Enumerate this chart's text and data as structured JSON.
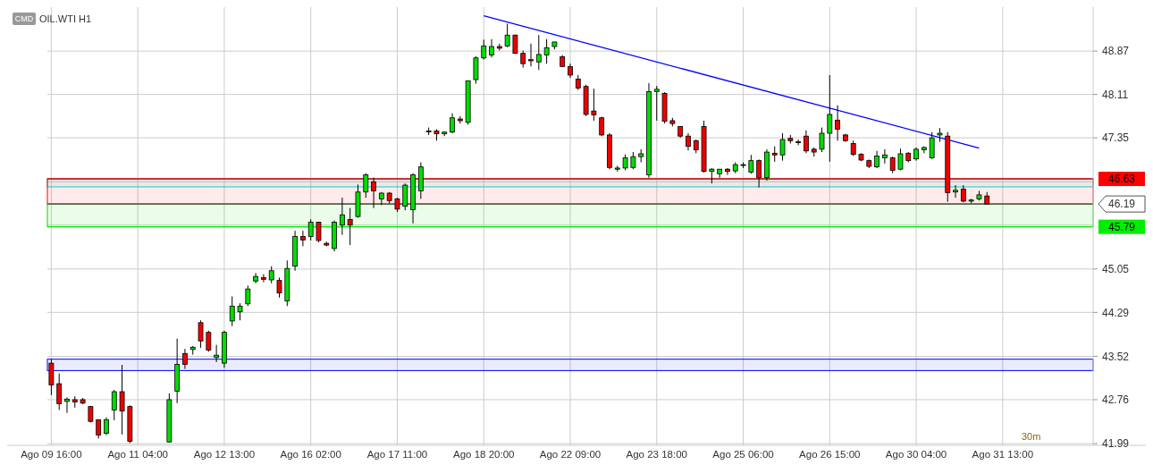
{
  "chart_data": {
    "type": "candlestick",
    "title": "OIL.WTI H1",
    "subtitle": "CMD",
    "annotations": [
      "30m"
    ],
    "grid": true,
    "categories": [
      "Ago 09 16:00",
      null,
      null,
      null,
      null,
      null,
      null,
      null,
      null,
      null,
      null,
      "Ago 11 04:00",
      null,
      null,
      null,
      null,
      null,
      null,
      null,
      null,
      null,
      null,
      "Ago 12 13:00",
      null,
      null,
      null,
      null,
      null,
      null,
      null,
      null,
      null,
      null,
      "Ago 16 02:00",
      null,
      null,
      null,
      null,
      null,
      null,
      null,
      null,
      null,
      null,
      "Ago 17 11:00",
      null,
      null,
      null,
      null,
      null,
      null,
      null,
      null,
      null,
      null,
      "Ago 18 20:00",
      null,
      null,
      null,
      null,
      null,
      null,
      null,
      null,
      null,
      null,
      "Ago 22 09:00",
      null,
      null,
      null,
      null,
      null,
      null,
      null,
      null,
      null,
      null,
      "Ago 23 18:00",
      null,
      null,
      null,
      null,
      null,
      null,
      null,
      null,
      null,
      null,
      "Ago 25 06:00",
      null,
      null,
      null,
      null,
      null,
      null,
      null,
      null,
      null,
      null,
      "Ago 26 15:00",
      null,
      null,
      null,
      null,
      null,
      null,
      null,
      null,
      null,
      null,
      "Ago 30 04:00",
      null,
      null,
      null,
      null,
      null,
      null,
      null,
      null,
      null,
      null,
      "Ago 31 13:00",
      null,
      null,
      null,
      null,
      null,
      null,
      null,
      null,
      null,
      null,
      null
    ],
    "ylim": [
      41.96,
      49.64
    ],
    "yticks": [
      41.99,
      42.76,
      43.52,
      44.29,
      45.05,
      {
        "value": 45.82,
        "label": null
      },
      {
        "value": 46.58,
        "label": null
      },
      47.35,
      48.11,
      48.87
    ],
    "ohlc": [
      [
        43.4,
        43.47,
        42.84,
        43.02
      ],
      [
        43.04,
        43.22,
        42.58,
        42.69
      ],
      [
        42.73,
        42.8,
        42.53,
        42.77
      ],
      [
        42.76,
        42.82,
        42.62,
        42.72
      ],
      [
        42.76,
        42.79,
        42.68,
        42.7
      ],
      [
        42.64,
        42.65,
        42.36,
        42.38
      ],
      [
        42.41,
        42.41,
        42.08,
        42.14
      ],
      [
        42.17,
        42.45,
        42.14,
        42.41
      ],
      [
        42.58,
        42.93,
        42.4,
        42.9
      ],
      [
        42.9,
        43.37,
        42.15,
        42.56
      ],
      [
        42.64,
        42.66,
        42.0,
        42.03
      ],
      null,
      null,
      null,
      null,
      [
        42.02,
        42.87,
        42.01,
        42.76
      ],
      [
        42.91,
        43.83,
        42.7,
        43.38
      ],
      [
        43.57,
        43.65,
        43.3,
        43.38
      ],
      [
        43.64,
        43.7,
        43.55,
        43.68
      ],
      [
        44.11,
        44.15,
        43.67,
        43.79
      ],
      [
        43.94,
        43.97,
        43.6,
        43.63
      ],
      [
        43.5,
        43.72,
        43.42,
        43.54
      ],
      [
        43.4,
        43.97,
        43.32,
        43.94
      ],
      [
        44.14,
        44.57,
        44.05,
        44.4
      ],
      [
        44.3,
        44.45,
        44.15,
        44.4
      ],
      [
        44.44,
        44.76,
        44.4,
        44.7
      ],
      [
        44.84,
        44.98,
        44.8,
        44.92
      ],
      [
        44.9,
        44.96,
        44.82,
        44.87
      ],
      [
        44.86,
        45.1,
        44.8,
        45.02
      ],
      [
        44.85,
        44.9,
        44.55,
        44.63
      ],
      [
        44.49,
        45.2,
        44.4,
        45.06
      ],
      [
        45.1,
        45.72,
        45.02,
        45.62
      ],
      [
        45.62,
        45.72,
        45.45,
        45.56
      ],
      [
        45.62,
        45.92,
        45.55,
        45.87
      ],
      [
        45.87,
        45.88,
        45.52,
        45.55
      ],
      [
        45.5,
        45.53,
        45.45,
        45.47
      ],
      [
        45.41,
        45.9,
        45.36,
        45.87
      ],
      [
        45.82,
        46.3,
        45.65,
        46.0
      ],
      [
        45.92,
        46.12,
        45.47,
        45.82
      ],
      [
        45.97,
        46.53,
        45.95,
        46.4
      ],
      [
        46.4,
        46.73,
        46.3,
        46.7
      ],
      [
        46.58,
        46.65,
        46.12,
        46.42
      ],
      [
        46.28,
        46.4,
        46.17,
        46.38
      ],
      [
        46.38,
        46.4,
        46.2,
        46.25
      ],
      [
        46.28,
        46.3,
        46.05,
        46.1
      ],
      [
        46.15,
        46.55,
        46.08,
        46.52
      ],
      [
        46.09,
        46.73,
        45.85,
        46.7
      ],
      [
        46.42,
        46.92,
        46.28,
        46.84
      ],
      [
        47.47,
        47.53,
        47.4,
        47.47
      ],
      [
        47.47,
        47.5,
        47.3,
        47.42
      ],
      [
        47.42,
        47.46,
        47.38,
        47.45
      ],
      [
        47.45,
        47.78,
        47.43,
        47.7
      ],
      [
        47.68,
        47.73,
        47.6,
        47.65
      ],
      [
        47.62,
        48.35,
        47.58,
        48.35
      ],
      [
        48.37,
        48.78,
        48.3,
        48.75
      ],
      [
        48.75,
        49.07,
        48.72,
        48.96
      ],
      [
        48.8,
        49.08,
        48.76,
        48.95
      ],
      [
        48.95,
        49.0,
        48.88,
        48.92
      ],
      [
        48.96,
        49.35,
        48.94,
        49.15
      ],
      [
        49.15,
        49.16,
        48.82,
        48.83
      ],
      [
        48.83,
        48.88,
        48.58,
        48.65
      ],
      [
        48.72,
        49.0,
        48.6,
        48.7
      ],
      [
        48.68,
        49.15,
        48.54,
        48.81
      ],
      [
        48.8,
        49.08,
        48.65,
        48.93
      ],
      [
        48.95,
        49.03,
        48.9,
        49.03
      ],
      [
        48.77,
        48.8,
        48.6,
        48.6
      ],
      [
        48.6,
        48.65,
        48.4,
        48.45
      ],
      [
        48.38,
        48.45,
        48.19,
        48.22
      ],
      [
        48.25,
        48.28,
        47.73,
        47.76
      ],
      [
        47.82,
        48.21,
        47.65,
        47.75
      ],
      [
        47.7,
        47.72,
        47.38,
        47.4
      ],
      [
        47.4,
        47.43,
        46.8,
        46.83
      ],
      [
        46.8,
        46.86,
        46.76,
        46.82
      ],
      [
        46.82,
        47.06,
        46.78,
        47.0
      ],
      [
        46.83,
        47.1,
        46.8,
        47.02
      ],
      [
        47.02,
        47.15,
        46.92,
        47.07
      ],
      [
        46.7,
        48.31,
        46.65,
        48.16
      ],
      [
        48.16,
        48.26,
        47.65,
        48.2
      ],
      [
        48.13,
        48.15,
        47.6,
        47.64
      ],
      [
        47.65,
        47.7,
        47.55,
        47.6
      ],
      [
        47.55,
        47.55,
        47.35,
        47.38
      ],
      [
        47.38,
        47.43,
        47.13,
        47.2
      ],
      [
        47.3,
        47.32,
        47.08,
        47.14
      ],
      [
        47.55,
        47.65,
        46.74,
        46.76
      ],
      [
        46.76,
        46.82,
        46.55,
        46.8
      ],
      [
        46.72,
        46.8,
        46.65,
        46.8
      ],
      [
        46.8,
        46.82,
        46.7,
        46.76
      ],
      [
        46.77,
        46.92,
        46.73,
        46.88
      ],
      [
        46.88,
        46.92,
        46.82,
        46.88
      ],
      [
        46.75,
        47.05,
        46.72,
        46.95
      ],
      [
        46.95,
        46.97,
        46.48,
        46.65
      ],
      [
        46.65,
        47.15,
        46.6,
        47.1
      ],
      [
        47.08,
        47.2,
        46.93,
        47.05
      ],
      [
        47.05,
        47.43,
        46.95,
        47.32
      ],
      [
        47.34,
        47.4,
        47.25,
        47.3
      ],
      [
        47.28,
        47.32,
        47.22,
        47.27
      ],
      [
        47.38,
        47.48,
        47.08,
        47.12
      ],
      [
        47.15,
        47.18,
        47.02,
        47.1
      ],
      [
        47.15,
        47.53,
        47.1,
        47.43
      ],
      [
        47.43,
        48.45,
        46.93,
        47.76
      ],
      [
        47.66,
        47.92,
        47.3,
        47.5
      ],
      [
        47.4,
        47.42,
        47.28,
        47.3
      ],
      [
        47.25,
        47.3,
        47.03,
        47.06
      ],
      [
        47.06,
        47.08,
        46.94,
        46.96
      ],
      [
        46.95,
        46.97,
        46.82,
        46.85
      ],
      [
        46.84,
        47.12,
        46.82,
        47.03
      ],
      [
        47.0,
        47.15,
        46.9,
        47.05
      ],
      [
        47.0,
        47.02,
        46.73,
        46.78
      ],
      [
        46.8,
        47.16,
        46.78,
        47.07
      ],
      [
        47.08,
        47.1,
        46.92,
        46.95
      ],
      [
        46.98,
        47.18,
        46.95,
        47.15
      ],
      [
        47.14,
        47.2,
        47.08,
        47.18
      ],
      [
        47.0,
        47.45,
        46.98,
        47.35
      ],
      [
        47.4,
        47.52,
        47.28,
        47.43
      ],
      [
        47.38,
        47.45,
        46.23,
        46.39
      ],
      [
        46.4,
        46.52,
        46.3,
        46.43
      ],
      [
        46.45,
        46.52,
        46.22,
        46.24
      ],
      [
        46.24,
        46.28,
        46.2,
        46.26
      ],
      [
        46.28,
        46.42,
        46.25,
        46.35
      ],
      [
        46.33,
        46.4,
        46.18,
        46.19
      ],
      null,
      null,
      null,
      null,
      null,
      null,
      null,
      null,
      null,
      null,
      null,
      null,
      null
    ],
    "series": [
      {
        "type": "line",
        "color": "#0000ff",
        "values": [
          null,
          null,
          null,
          null,
          null,
          null,
          null,
          null,
          null,
          null,
          null,
          null,
          null,
          null,
          null,
          null,
          null,
          null,
          null,
          null,
          null,
          null,
          null,
          null,
          null,
          null,
          null,
          null,
          null,
          null,
          null,
          null,
          null,
          null,
          null,
          null,
          null,
          null,
          null,
          null,
          null,
          null,
          null,
          null,
          null,
          null,
          null,
          null,
          null,
          null,
          null,
          null,
          null,
          null,
          null,
          49.49,
          null,
          null,
          null,
          null,
          null,
          null,
          null,
          null,
          null,
          null,
          null,
          null,
          null,
          null,
          null,
          null,
          null,
          null,
          null,
          null,
          null,
          null,
          null,
          null,
          null,
          null,
          null,
          null,
          null,
          null,
          null,
          null,
          null,
          null,
          null,
          null,
          null,
          null,
          null,
          null,
          null,
          null,
          null,
          null,
          null,
          null,
          null,
          null,
          null,
          null,
          null,
          null,
          null,
          null,
          null,
          null,
          null,
          null,
          null,
          null,
          null,
          null,
          47.17,
          null,
          null,
          null,
          null,
          null,
          null,
          null,
          null,
          null,
          null,
          null,
          null,
          null,
          null
        ]
      }
    ],
    "ref_lines": [
      {
        "axis": "y",
        "value": 46.63,
        "label": "46.63",
        "color": "#ff0000"
      },
      {
        "axis": "y",
        "value": 46.19,
        "label": "46.19",
        "color": "#555555"
      },
      {
        "axis": "y",
        "value": 45.79,
        "label": "45.79",
        "color": "#00ee00"
      }
    ],
    "bands": [
      {
        "axis": "y",
        "from": 46.49,
        "to": 46.64,
        "color": "#00dddd"
      },
      {
        "axis": "y",
        "from": 43.27,
        "to": 43.47,
        "color": "#0000ff"
      },
      {
        "axis": "y",
        "from": 46.19,
        "to": 46.63,
        "color": "#ff0000"
      },
      {
        "axis": "y",
        "from": 45.79,
        "to": 46.19,
        "color": "#00dd00"
      }
    ]
  }
}
